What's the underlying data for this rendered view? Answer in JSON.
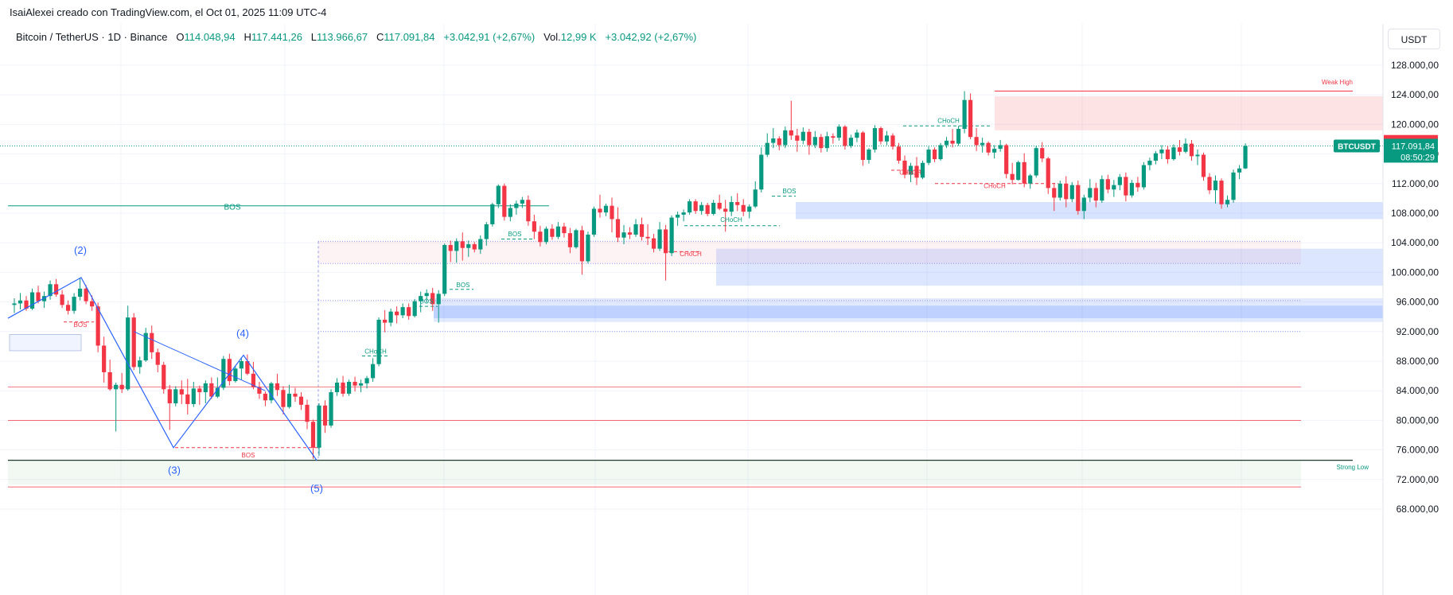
{
  "header": {
    "author_line": "IsaiAlexei creado con TradingView.com, el Oct 01, 2025 11:09 UTC-4"
  },
  "legend": {
    "symbol": "Bitcoin / TetherUS · 1D · Binance",
    "open_label": "O",
    "open": "114.048,94",
    "high_label": "H",
    "high": "117.441,26",
    "low_label": "L",
    "low": "113.966,67",
    "close_label": "C",
    "close": "117.091,84",
    "change": "+3.042,91 (+2,67%)",
    "vol_label": "Vol.",
    "vol": "12,99 K",
    "vol_change": "+3.042,92 (+2,67%)"
  },
  "price_axis": {
    "unit": "USDT",
    "ticks": [
      "128.000,00",
      "124.000,00",
      "120.000,00",
      "116.000,00",
      "112.000,00",
      "108.000,00",
      "104.000,00",
      "100.000,00",
      "96.000,00",
      "92.000,00",
      "88.000,00",
      "84.000,00",
      "80.000,00",
      "76.000,00",
      "72.000,00",
      "68.000,00"
    ],
    "tick_values": [
      128000,
      124000,
      120000,
      116000,
      112000,
      108000,
      104000,
      100000,
      96000,
      92000,
      88000,
      84000,
      80000,
      76000,
      72000,
      68000
    ],
    "tag_red_value": "117.092,09",
    "symbol_tag": "BTCUSDT",
    "tag_last_value": "117.091,84",
    "countdown": "08:50:29",
    "colors": {
      "up": "#089981",
      "down": "#f23645",
      "wave": "#2962ff"
    }
  },
  "chart_data": {
    "type": "candlestick",
    "title": "Bitcoin / TetherUS · 1D · Binance",
    "ylim": [
      68000,
      129500
    ],
    "last_price": 117091.84,
    "ohlc": [
      [
        95600,
        96500,
        94500,
        95800
      ],
      [
        95800,
        97200,
        95000,
        96200
      ],
      [
        96200,
        96800,
        94800,
        95100
      ],
      [
        95100,
        97800,
        94900,
        97300
      ],
      [
        97300,
        98200,
        95800,
        96100
      ],
      [
        96100,
        97400,
        95200,
        96800
      ],
      [
        96800,
        98900,
        96300,
        98400
      ],
      [
        98400,
        99100,
        96700,
        97000
      ],
      [
        97000,
        97600,
        95200,
        95600
      ],
      [
        95600,
        96200,
        94300,
        94800
      ],
      [
        94800,
        97200,
        94400,
        96700
      ],
      [
        96700,
        99300,
        96200,
        97800
      ],
      [
        97800,
        98300,
        95700,
        96100
      ],
      [
        96100,
        96900,
        94800,
        95400
      ],
      [
        95400,
        95900,
        89200,
        90100
      ],
      [
        90100,
        91300,
        85100,
        86500
      ],
      [
        86500,
        88200,
        84000,
        84200
      ],
      [
        84200,
        85100,
        78500,
        84800
      ],
      [
        84800,
        86400,
        83700,
        84200
      ],
      [
        84200,
        95500,
        84000,
        93900
      ],
      [
        93900,
        94500,
        86800,
        87200
      ],
      [
        87200,
        88600,
        86300,
        88100
      ],
      [
        88100,
        92500,
        87900,
        91800
      ],
      [
        91800,
        92800,
        88300,
        89200
      ],
      [
        89200,
        89700,
        86500,
        87500
      ],
      [
        87500,
        87900,
        83600,
        84200
      ],
      [
        84200,
        84800,
        78700,
        82300
      ],
      [
        82300,
        84600,
        81900,
        84200
      ],
      [
        84200,
        85400,
        82200,
        83500
      ],
      [
        83500,
        85600,
        80800,
        82200
      ],
      [
        82200,
        85200,
        81800,
        84300
      ],
      [
        84300,
        84700,
        82100,
        83800
      ],
      [
        83800,
        85400,
        82300,
        85000
      ],
      [
        85000,
        85800,
        82900,
        83200
      ],
      [
        83200,
        85800,
        83000,
        84400
      ],
      [
        84400,
        88700,
        84100,
        88300
      ],
      [
        88300,
        89000,
        84700,
        85300
      ],
      [
        85300,
        87300,
        85100,
        87000
      ],
      [
        87000,
        88500,
        85500,
        88000
      ],
      [
        88000,
        88900,
        86100,
        86300
      ],
      [
        86300,
        87900,
        84200,
        84500
      ],
      [
        84500,
        85200,
        82900,
        83600
      ],
      [
        83600,
        83900,
        81900,
        82700
      ],
      [
        82700,
        85200,
        82300,
        85000
      ],
      [
        85000,
        86300,
        83300,
        84100
      ],
      [
        84100,
        84600,
        80800,
        81800
      ],
      [
        81800,
        84800,
        81600,
        83600
      ],
      [
        83600,
        84400,
        82500,
        83200
      ],
      [
        83200,
        83800,
        81400,
        82100
      ],
      [
        82100,
        82800,
        78800,
        79800
      ],
      [
        79800,
        80100,
        74800,
        76300
      ],
      [
        76300,
        82300,
        75200,
        82000
      ],
      [
        82000,
        82700,
        78300,
        79300
      ],
      [
        79300,
        84200,
        79000,
        83800
      ],
      [
        83800,
        85700,
        83300,
        85100
      ],
      [
        85100,
        86000,
        83200,
        83600
      ],
      [
        83600,
        85500,
        83300,
        85200
      ],
      [
        85200,
        85900,
        83900,
        84700
      ],
      [
        84700,
        85500,
        83800,
        85000
      ],
      [
        85000,
        86000,
        84300,
        85700
      ],
      [
        85700,
        88400,
        85200,
        87600
      ],
      [
        87600,
        93900,
        87300,
        93600
      ],
      [
        93600,
        94900,
        91900,
        93200
      ],
      [
        93200,
        95100,
        92700,
        94700
      ],
      [
        94700,
        95400,
        93100,
        94200
      ],
      [
        94200,
        95800,
        93800,
        95300
      ],
      [
        95300,
        95800,
        93600,
        94100
      ],
      [
        94100,
        96400,
        93900,
        96100
      ],
      [
        96100,
        97400,
        94600,
        96800
      ],
      [
        96800,
        97700,
        95900,
        97200
      ],
      [
        97200,
        97900,
        94800,
        95700
      ],
      [
        95700,
        97600,
        93200,
        97100
      ],
      [
        97100,
        103900,
        96800,
        103700
      ],
      [
        103700,
        104300,
        101400,
        102900
      ],
      [
        102900,
        104600,
        101300,
        104200
      ],
      [
        104200,
        105400,
        101600,
        103300
      ],
      [
        103300,
        104300,
        102100,
        103800
      ],
      [
        103800,
        104100,
        102700,
        103100
      ],
      [
        103100,
        105000,
        102500,
        104500
      ],
      [
        104500,
        106800,
        103600,
        106500
      ],
      [
        106500,
        109400,
        106200,
        109200
      ],
      [
        109200,
        111900,
        108700,
        111700
      ],
      [
        111700,
        112000,
        107000,
        107500
      ],
      [
        107500,
        109200,
        106900,
        108700
      ],
      [
        108700,
        109700,
        107800,
        109300
      ],
      [
        109300,
        110200,
        108700,
        109800
      ],
      [
        109800,
        110400,
        106300,
        106900
      ],
      [
        106900,
        107800,
        104500,
        105500
      ],
      [
        105500,
        106300,
        103500,
        104100
      ],
      [
        104100,
        106200,
        103800,
        105900
      ],
      [
        105900,
        106500,
        104400,
        104800
      ],
      [
        104800,
        106800,
        104500,
        106200
      ],
      [
        106200,
        106700,
        104700,
        105300
      ],
      [
        105300,
        106000,
        102600,
        103400
      ],
      [
        103400,
        105900,
        103200,
        105700
      ],
      [
        105700,
        106300,
        99700,
        101500
      ],
      [
        101500,
        105500,
        101200,
        105100
      ],
      [
        105100,
        108900,
        104800,
        108600
      ],
      [
        108600,
        110500,
        107400,
        108100
      ],
      [
        108100,
        109300,
        107600,
        109000
      ],
      [
        109000,
        110100,
        105400,
        107200
      ],
      [
        107200,
        108800,
        104100,
        104700
      ],
      [
        104700,
        106400,
        103800,
        105400
      ],
      [
        105400,
        106100,
        104500,
        105100
      ],
      [
        105100,
        107200,
        104800,
        106500
      ],
      [
        106500,
        107400,
        104300,
        104800
      ],
      [
        104800,
        106500,
        103700,
        104600
      ],
      [
        104600,
        105200,
        102700,
        103200
      ],
      [
        103200,
        106800,
        102900,
        105800
      ],
      [
        105800,
        106400,
        98900,
        102600
      ],
      [
        102600,
        107700,
        102200,
        107400
      ],
      [
        107400,
        108200,
        106300,
        107800
      ],
      [
        107800,
        108500,
        106900,
        108100
      ],
      [
        108100,
        109900,
        107800,
        109600
      ],
      [
        109600,
        109900,
        107900,
        108300
      ],
      [
        108300,
        109500,
        107800,
        109100
      ],
      [
        109100,
        109400,
        107600,
        107900
      ],
      [
        107900,
        109800,
        107700,
        109400
      ],
      [
        109400,
        110500,
        108400,
        108600
      ],
      [
        108600,
        109800,
        105500,
        108200
      ],
      [
        108200,
        110300,
        107600,
        109500
      ],
      [
        109500,
        110700,
        108300,
        109100
      ],
      [
        109100,
        109900,
        107600,
        108200
      ],
      [
        108200,
        109200,
        107300,
        108900
      ],
      [
        108900,
        112300,
        108700,
        111200
      ],
      [
        111200,
        116900,
        110800,
        115900
      ],
      [
        115900,
        118800,
        115600,
        117500
      ],
      [
        117500,
        119500,
        116800,
        118100
      ],
      [
        118100,
        118400,
        116500,
        117200
      ],
      [
        117200,
        119700,
        116800,
        119200
      ],
      [
        119200,
        123200,
        117900,
        118500
      ],
      [
        118500,
        119400,
        116300,
        117800
      ],
      [
        117800,
        119600,
        117300,
        119000
      ],
      [
        119000,
        119400,
        115900,
        117200
      ],
      [
        117200,
        119100,
        116800,
        118300
      ],
      [
        118300,
        118700,
        116200,
        116800
      ],
      [
        116800,
        119000,
        116300,
        118400
      ],
      [
        118400,
        118800,
        117400,
        118200
      ],
      [
        118200,
        120000,
        117800,
        119700
      ],
      [
        119700,
        119900,
        116600,
        117100
      ],
      [
        117100,
        118600,
        116800,
        118200
      ],
      [
        118200,
        119300,
        117600,
        118900
      ],
      [
        118900,
        119100,
        114400,
        115200
      ],
      [
        115200,
        116800,
        114700,
        116600
      ],
      [
        116600,
        119900,
        116200,
        119500
      ],
      [
        119500,
        119700,
        117300,
        117700
      ],
      [
        117700,
        119100,
        117200,
        118500
      ],
      [
        118500,
        118800,
        116600,
        117000
      ],
      [
        117000,
        117500,
        114700,
        115100
      ],
      [
        115100,
        115800,
        112700,
        113200
      ],
      [
        113200,
        114800,
        112200,
        114400
      ],
      [
        114400,
        115600,
        111800,
        112800
      ],
      [
        112800,
        115100,
        112600,
        114800
      ],
      [
        114800,
        117000,
        114500,
        116600
      ],
      [
        116600,
        116900,
        114900,
        115300
      ],
      [
        115300,
        117500,
        115100,
        117200
      ],
      [
        117200,
        118300,
        116800,
        117800
      ],
      [
        117800,
        119400,
        116900,
        117400
      ],
      [
        117400,
        119800,
        117100,
        119400
      ],
      [
        119400,
        124500,
        118800,
        123300
      ],
      [
        123300,
        124200,
        118000,
        118300
      ],
      [
        118300,
        119500,
        116400,
        117200
      ],
      [
        117200,
        118200,
        116200,
        117500
      ],
      [
        117500,
        117700,
        115800,
        116200
      ],
      [
        116200,
        117200,
        115400,
        116700
      ],
      [
        116700,
        117900,
        116300,
        117200
      ],
      [
        117200,
        117400,
        112700,
        113300
      ],
      [
        113300,
        114800,
        111900,
        112500
      ],
      [
        112500,
        115100,
        112400,
        114900
      ],
      [
        114900,
        116100,
        111500,
        112000
      ],
      [
        112000,
        113300,
        111300,
        113100
      ],
      [
        113100,
        117100,
        112800,
        116800
      ],
      [
        116800,
        117600,
        114900,
        115400
      ],
      [
        115400,
        115600,
        110600,
        111400
      ],
      [
        111400,
        112100,
        108300,
        110100
      ],
      [
        110100,
        112400,
        109700,
        112000
      ],
      [
        112000,
        113000,
        108800,
        109900
      ],
      [
        109900,
        112200,
        109500,
        111800
      ],
      [
        111800,
        112400,
        107800,
        108300
      ],
      [
        108300,
        110500,
        107200,
        110100
      ],
      [
        110100,
        112600,
        109500,
        111400
      ],
      [
        111400,
        112100,
        108800,
        109700
      ],
      [
        109700,
        113100,
        109400,
        112600
      ],
      [
        112600,
        113200,
        110700,
        111200
      ],
      [
        111200,
        112500,
        110200,
        111800
      ],
      [
        111800,
        113300,
        111100,
        112900
      ],
      [
        112900,
        113500,
        109600,
        110400
      ],
      [
        110400,
        112500,
        110100,
        112100
      ],
      [
        112100,
        112900,
        110900,
        111500
      ],
      [
        111500,
        114900,
        111200,
        114500
      ],
      [
        114500,
        115500,
        113800,
        115100
      ],
      [
        115100,
        116400,
        114600,
        116100
      ],
      [
        116100,
        117200,
        115300,
        116600
      ],
      [
        116600,
        117100,
        114700,
        115300
      ],
      [
        115300,
        117300,
        115100,
        116900
      ],
      [
        116900,
        117900,
        115800,
        116300
      ],
      [
        116300,
        118100,
        116100,
        117400
      ],
      [
        117400,
        117900,
        115100,
        115700
      ],
      [
        115700,
        116600,
        114500,
        115900
      ],
      [
        115900,
        116200,
        112400,
        112900
      ],
      [
        112900,
        113400,
        110600,
        111100
      ],
      [
        111100,
        113100,
        109300,
        112400
      ],
      [
        112400,
        112700,
        108600,
        109200
      ],
      [
        109200,
        110400,
        108800,
        109800
      ],
      [
        109800,
        113900,
        109400,
        113500
      ],
      [
        113500,
        114500,
        112600,
        114049
      ],
      [
        114049,
        117441,
        113967,
        117092
      ]
    ],
    "zones": [
      {
        "label": "Weak High",
        "from": 119200,
        "to": 123800,
        "line": 124500
      },
      {
        "label": "Strong Low",
        "from": 71500,
        "to": 74500,
        "line": 74600
      }
    ],
    "annotations": {
      "bos": [
        "BOS",
        "BOS",
        "BOS",
        "BOS",
        "BOS",
        "BOS",
        "BOS"
      ],
      "choch": [
        "CHoCH",
        "CHoCH",
        "CHoCH",
        "CHoCH",
        "CHoCH",
        "CHoCH"
      ],
      "weak_high": "Weak High",
      "strong_low": "Strong Low",
      "waves": [
        "(2)",
        "(3)",
        "(4)",
        "(5)"
      ]
    }
  }
}
